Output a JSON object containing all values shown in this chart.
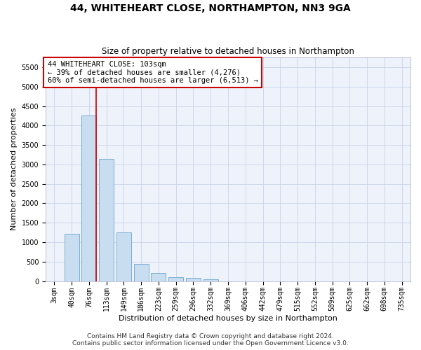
{
  "title": "44, WHITEHEART CLOSE, NORTHAMPTON, NN3 9GA",
  "subtitle": "Size of property relative to detached houses in Northampton",
  "xlabel": "Distribution of detached houses by size in Northampton",
  "ylabel": "Number of detached properties",
  "categories": [
    "3sqm",
    "40sqm",
    "76sqm",
    "113sqm",
    "149sqm",
    "186sqm",
    "223sqm",
    "259sqm",
    "296sqm",
    "332sqm",
    "369sqm",
    "406sqm",
    "442sqm",
    "479sqm",
    "515sqm",
    "552sqm",
    "589sqm",
    "625sqm",
    "662sqm",
    "698sqm",
    "735sqm"
  ],
  "values": [
    0,
    1220,
    4250,
    3150,
    1250,
    450,
    200,
    100,
    75,
    50,
    0,
    0,
    0,
    0,
    0,
    0,
    0,
    0,
    0,
    0,
    0
  ],
  "bar_color": "#c8ddf0",
  "bar_edge_color": "#7aafd4",
  "grid_color": "#c8d4e8",
  "background_color": "#eef2fa",
  "vline_color": "#cc0000",
  "annotation_box_text": "44 WHITEHEART CLOSE: 103sqm\n← 39% of detached houses are smaller (4,276)\n60% of semi-detached houses are larger (6,513) →",
  "annotation_box_color": "#cc0000",
  "annotation_box_bg": "#ffffff",
  "ylim": [
    0,
    5750
  ],
  "yticks": [
    0,
    500,
    1000,
    1500,
    2000,
    2500,
    3000,
    3500,
    4000,
    4500,
    5000,
    5500
  ],
  "footer_line1": "Contains HM Land Registry data © Crown copyright and database right 2024.",
  "footer_line2": "Contains public sector information licensed under the Open Government Licence v3.0.",
  "title_fontsize": 10,
  "subtitle_fontsize": 8.5,
  "xlabel_fontsize": 8,
  "ylabel_fontsize": 8,
  "tick_fontsize": 7,
  "footer_fontsize": 6.5,
  "ann_fontsize": 7.5
}
